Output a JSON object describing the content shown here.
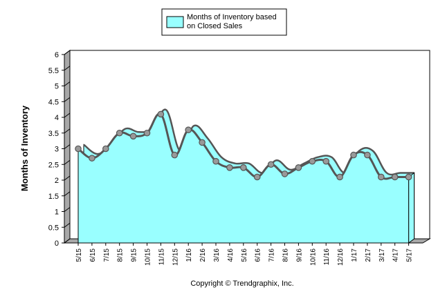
{
  "chart_data": {
    "type": "area",
    "title": "",
    "xlabel": "",
    "ylabel": "Months of Inventory",
    "ylim": [
      0,
      6
    ],
    "yticks": [
      "0",
      "0.5",
      "1",
      "1.5",
      "2",
      "2.5",
      "3",
      "3.5",
      "4",
      "4.5",
      "5",
      "5.5",
      "6"
    ],
    "categories": [
      "5/15",
      "6/15",
      "7/15",
      "8/15",
      "9/15",
      "10/15",
      "11/15",
      "12/15",
      "1/16",
      "2/16",
      "3/16",
      "4/16",
      "5/16",
      "6/16",
      "7/16",
      "8/16",
      "9/16",
      "10/16",
      "11/16",
      "12/16",
      "1/17",
      "2/17",
      "3/17",
      "4/17",
      "5/17"
    ],
    "series": [
      {
        "name": "Months of Inventory based on Closed Sales",
        "values": [
          3.0,
          2.7,
          3.0,
          3.5,
          3.4,
          3.5,
          4.1,
          2.8,
          3.6,
          3.2,
          2.6,
          2.4,
          2.4,
          2.1,
          2.5,
          2.2,
          2.4,
          2.6,
          2.6,
          2.1,
          2.8,
          2.8,
          2.1,
          2.1,
          2.1
        ]
      }
    ],
    "legend": {
      "position": "top-center",
      "label_line1": "Months of Inventory based",
      "label_line2": "on Closed Sales"
    },
    "grid": false,
    "colors": {
      "area_fill": "#99FFFF",
      "line": "#555555",
      "marker": "#999999",
      "axis": "#000000",
      "wall": "#A0A0A0"
    }
  },
  "footer": {
    "copyright": "Copyright © Trendgraphix, Inc."
  }
}
